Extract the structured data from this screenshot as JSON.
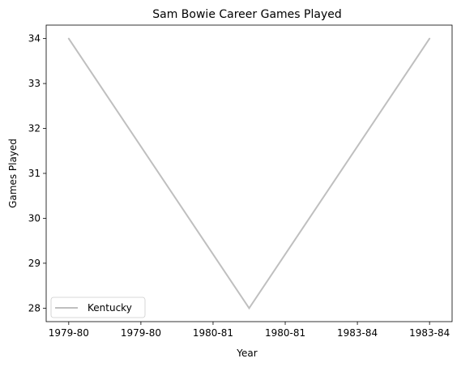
{
  "chart_data": {
    "type": "line",
    "title": "Sam Bowie Career Games Played",
    "xlabel": "Year",
    "ylabel": "Games Played",
    "x_tick_labels": [
      "1979-80",
      "1979-80",
      "1980-81",
      "1980-81",
      "1983-84",
      "1983-84"
    ],
    "x_range": [
      -0.125,
      2.125
    ],
    "ylim": [
      27.7,
      34.3
    ],
    "y_ticks": [
      28,
      29,
      30,
      31,
      32,
      33,
      34
    ],
    "grid": false,
    "legend_position": "lower-left",
    "series": [
      {
        "name": "Kentucky",
        "color": "#bfbfbf",
        "points": [
          {
            "x": 0,
            "y": 34
          },
          {
            "x": 1,
            "y": 28
          },
          {
            "x": 2,
            "y": 34
          }
        ]
      }
    ]
  }
}
